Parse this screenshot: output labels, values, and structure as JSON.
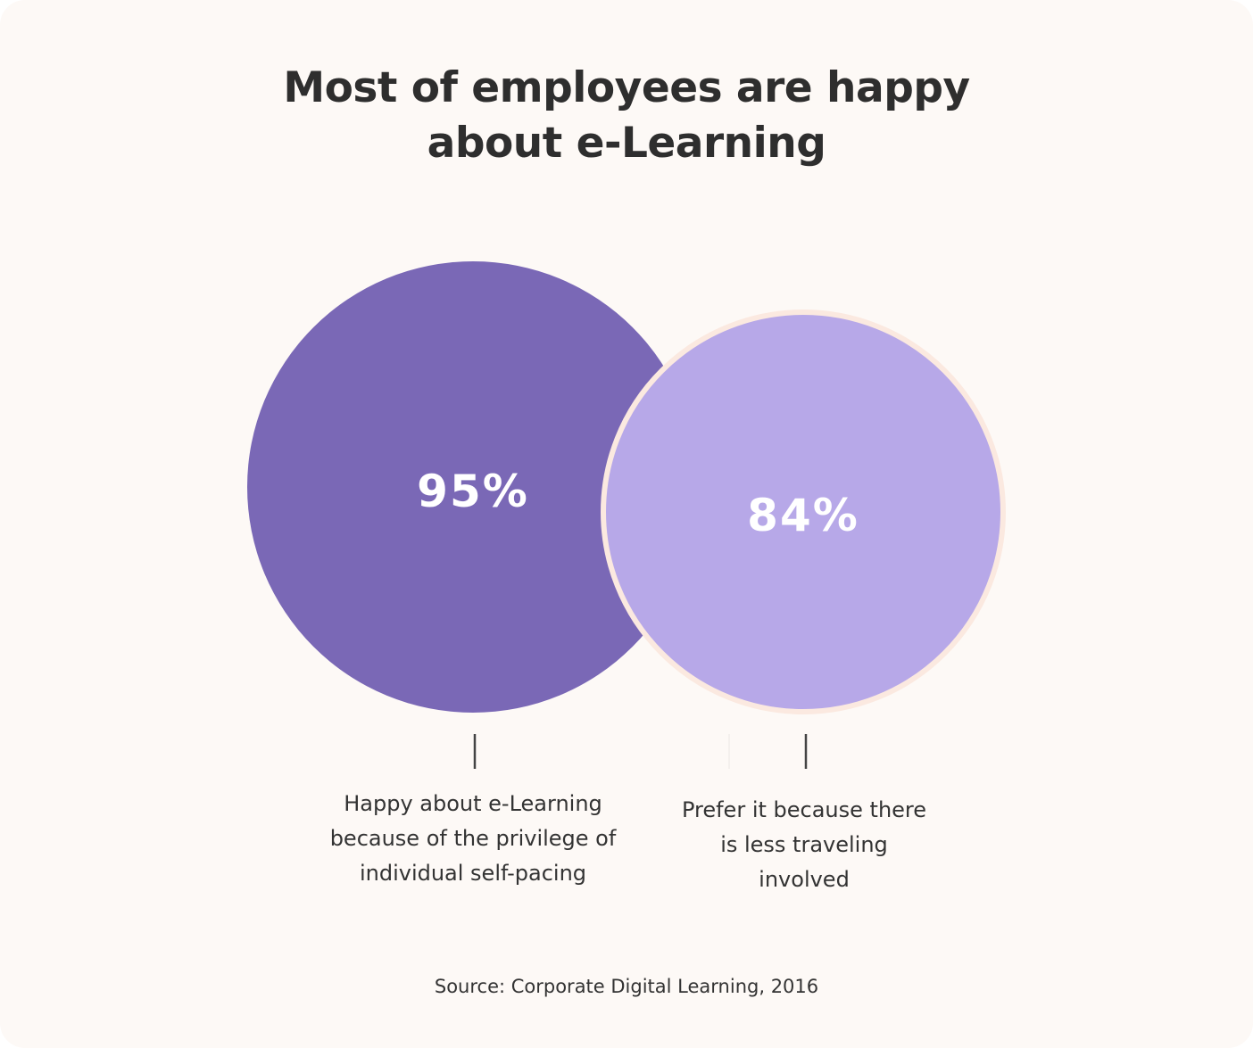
{
  "title_lines": [
    "Most of employees are happy",
    "about e-Learning"
  ],
  "chart_data": {
    "type": "bubble",
    "title": "Most of employees are happy about e-Learning",
    "series": [
      {
        "value": 95,
        "label": "95%",
        "description_lines": [
          "Happy about e-Learning",
          "because of the privilege of",
          "individual self-pacing"
        ],
        "color": "#7a68b6"
      },
      {
        "value": 84,
        "label": "84%",
        "description_lines": [
          "Prefer it because there",
          "is less traveling",
          "involved"
        ],
        "color": "#b7a8e8"
      }
    ]
  },
  "source": "Source: Corporate Digital Learning, 2016",
  "colors": {
    "background": "#fdf9f6",
    "outline": "#fbe9e0",
    "tick": "#444444"
  }
}
